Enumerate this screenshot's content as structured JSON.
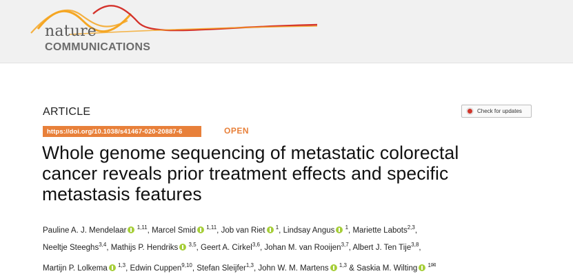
{
  "journal": {
    "name_top": "nature",
    "name_bottom": "COMMUNICATIONS",
    "colors": {
      "wave_orange": "#f5a623",
      "wave_red": "#d4322b",
      "band": "#f1f1f1"
    }
  },
  "article": {
    "type": "ARTICLE",
    "check_updates": "Check for updates",
    "doi": "https://doi.org/10.1038/s41467-020-20887-6",
    "open": "OPEN",
    "title_lines": [
      "Whole genome sequencing of metastatic colorectal",
      "cancer reveals prior treatment effects and specific",
      "metastasis features"
    ]
  },
  "authors": [
    [
      {
        "name": "Pauline A. J. Mendelaar",
        "orcid": true,
        "aff": "1,11",
        "sep": ", "
      },
      {
        "name": "Marcel Smid",
        "orcid": true,
        "aff": "1,11",
        "sep": ", "
      },
      {
        "name": "Job van Riet",
        "orcid": true,
        "aff": "1",
        "sep": ", "
      },
      {
        "name": "Lindsay Angus",
        "orcid": true,
        "aff": "1",
        "sep": ", "
      },
      {
        "name": "Mariette Labots",
        "orcid": false,
        "aff": "2,3",
        "sep": ","
      }
    ],
    [
      {
        "name": "Neeltje Steeghs",
        "orcid": false,
        "aff": "3,4",
        "sep": ", "
      },
      {
        "name": "Mathijs P. Hendriks",
        "orcid": true,
        "aff": "3,5",
        "sep": ", "
      },
      {
        "name": "Geert A. Cirkel",
        "orcid": false,
        "aff": "3,6",
        "sep": ", "
      },
      {
        "name": "Johan M. van Rooijen",
        "orcid": false,
        "aff": "3,7",
        "sep": ", "
      },
      {
        "name": "Albert J. Ten Tije",
        "orcid": false,
        "aff": "3,8",
        "sep": ","
      }
    ],
    [
      {
        "name": "Martijn P. Lolkema",
        "orcid": true,
        "aff": "1,3",
        "sep": ", "
      },
      {
        "name": "Edwin Cuppen",
        "orcid": false,
        "aff": "9,10",
        "sep": ", "
      },
      {
        "name": "Stefan Sleijfer",
        "orcid": false,
        "aff": "1,3",
        "sep": ", "
      },
      {
        "name": "John W. M. Martens",
        "orcid": true,
        "aff": "1,3",
        "sep": " & "
      },
      {
        "name": "Saskia M. Wilting",
        "orcid": true,
        "aff": "1",
        "sep": "",
        "mail": "✉"
      }
    ]
  ]
}
